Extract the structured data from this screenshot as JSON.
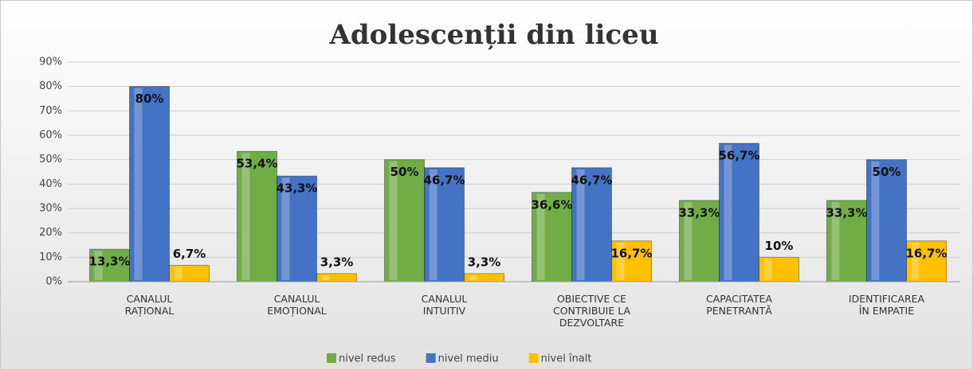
{
  "chart_data": {
    "type": "bar",
    "title": "Adolescenții din liceu",
    "categories": [
      "CANALUL RAȚIONAL",
      "CANALUL EMOȚIONAL",
      "CANALUL INTUITIV",
      "OBIECTIVE CE CONTRIBUIE LA DEZVOLTARE",
      "CAPACITATEA PENETRANTĂ",
      "IDENTIFICAREA ÎN EMPATIE"
    ],
    "series": [
      {
        "name": "nivel redus",
        "color": "#70ad47",
        "values": [
          13.3,
          53.4,
          50,
          36.6,
          33.3,
          33.3
        ],
        "value_labels": [
          "13,3%",
          "53,4%",
          "50%",
          "36,6%",
          "33,3%",
          "33,3%"
        ]
      },
      {
        "name": "nivel mediu",
        "color": "#4472c4",
        "values": [
          80,
          43.3,
          46.7,
          46.7,
          56.7,
          50
        ],
        "value_labels": [
          "80%",
          "43,3%",
          "46,7%",
          "46,7%",
          "56,7%",
          "50%"
        ]
      },
      {
        "name": "nivel înalt",
        "color": "#ffc000",
        "values": [
          6.7,
          3.3,
          3.3,
          16.7,
          10,
          16.7
        ],
        "value_labels": [
          "6,7%",
          "3,3%",
          "3,3%",
          "16,7%",
          "10%",
          "16,7%"
        ]
      }
    ],
    "ylim": [
      0,
      90
    ],
    "yticks": [
      {
        "value": 0,
        "label": "0%"
      },
      {
        "value": 10,
        "label": "10%"
      },
      {
        "value": 20,
        "label": "20%"
      },
      {
        "value": 30,
        "label": "30%"
      },
      {
        "value": 40,
        "label": "40%"
      },
      {
        "value": 50,
        "label": "50%"
      },
      {
        "value": 60,
        "label": "60%"
      },
      {
        "value": 70,
        "label": "70%"
      },
      {
        "value": 80,
        "label": "80%"
      },
      {
        "value": 90,
        "label": "90%"
      }
    ],
    "grid": true,
    "legend": "bottom"
  }
}
